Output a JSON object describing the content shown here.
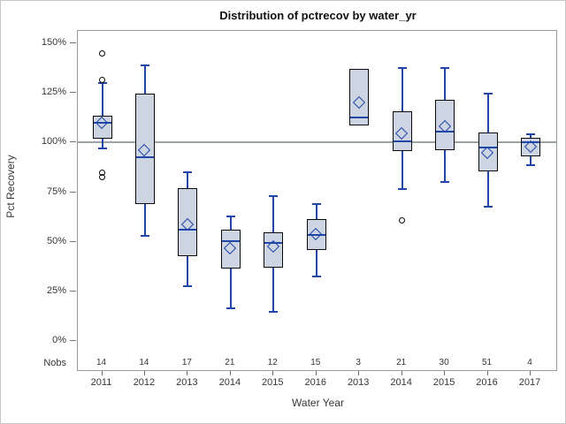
{
  "window": {
    "kind": "sas-ods-graphics-boxplot"
  },
  "chart_data": {
    "type": "boxplot",
    "title": "Distribution of pctrecov by water_yr",
    "xlabel": "Water Year",
    "ylabel": "Pct Recovery",
    "nobs_row_label": "Nobs",
    "ylim": [
      0,
      150
    ],
    "ytick_values": [
      0,
      25,
      50,
      75,
      100,
      125,
      150
    ],
    "ytick_labels": [
      "0%",
      "25%",
      "50%",
      "75%",
      "100%",
      "125%",
      "150%"
    ],
    "reference_line": 100,
    "grid": "off",
    "legend": "none",
    "categories": [
      "2011",
      "2012",
      "2013",
      "2014",
      "2015",
      "2016",
      "2013",
      "2014",
      "2015",
      "2016",
      "2017"
    ],
    "nobs": [
      14,
      14,
      17,
      21,
      12,
      15,
      3,
      21,
      30,
      51,
      4
    ],
    "series": [
      {
        "category": "2011",
        "nobs": 14,
        "whisker_low": 97,
        "q1": 102,
        "median": 110,
        "q3": 113.5,
        "whisker_high": 130,
        "mean": 109.5,
        "outliers": [
          145,
          131.5,
          85,
          82.5
        ]
      },
      {
        "category": "2012",
        "nobs": 14,
        "whisker_low": 53,
        "q1": 69,
        "median": 92.5,
        "q3": 124.5,
        "whisker_high": 139,
        "mean": 96,
        "outliers": []
      },
      {
        "category": "2013",
        "nobs": 17,
        "whisker_low": 27.5,
        "q1": 43,
        "median": 56,
        "q3": 77,
        "whisker_high": 85,
        "mean": 58.5,
        "outliers": []
      },
      {
        "category": "2014",
        "nobs": 21,
        "whisker_low": 16.5,
        "q1": 36.5,
        "median": 50.5,
        "q3": 56,
        "whisker_high": 63,
        "mean": 46.5,
        "outliers": []
      },
      {
        "category": "2015",
        "nobs": 12,
        "whisker_low": 15,
        "q1": 37,
        "median": 49.5,
        "q3": 55,
        "whisker_high": 73,
        "mean": 47.5,
        "outliers": []
      },
      {
        "category": "2016",
        "nobs": 15,
        "whisker_low": 32.5,
        "q1": 46,
        "median": 53.5,
        "q3": 61.5,
        "whisker_high": 69,
        "mean": 53.5,
        "outliers": []
      },
      {
        "category": "2013",
        "nobs": 3,
        "whisker_low": 108.5,
        "q1": 108.5,
        "median": 112.5,
        "q3": 137,
        "whisker_high": 137,
        "mean": 120,
        "outliers": []
      },
      {
        "category": "2014",
        "nobs": 21,
        "whisker_low": 76.5,
        "q1": 95.5,
        "median": 100.5,
        "q3": 115.5,
        "whisker_high": 137.5,
        "mean": 104.5,
        "outliers": [
          61
        ]
      },
      {
        "category": "2015",
        "nobs": 30,
        "whisker_low": 80,
        "q1": 96,
        "median": 105.5,
        "q3": 121.5,
        "whisker_high": 137.5,
        "mean": 108,
        "outliers": []
      },
      {
        "category": "2016",
        "nobs": 51,
        "whisker_low": 67.5,
        "q1": 85.5,
        "median": 97.5,
        "q3": 105,
        "whisker_high": 124.5,
        "mean": 94.5,
        "outliers": []
      },
      {
        "category": "2017",
        "nobs": 4,
        "whisker_low": 88.5,
        "q1": 93,
        "median": 100,
        "q3": 102.5,
        "whisker_high": 104,
        "mean": 97.5,
        "outliers": []
      }
    ],
    "colors": {
      "box_fill": "#cdd5e3",
      "box_border": "#0a0a0a",
      "line_blue": "#2246a8",
      "reference_line": "#9ea4a4",
      "frame": "#959c9e",
      "tick_text": "#363636",
      "title_text": "#111111"
    }
  }
}
